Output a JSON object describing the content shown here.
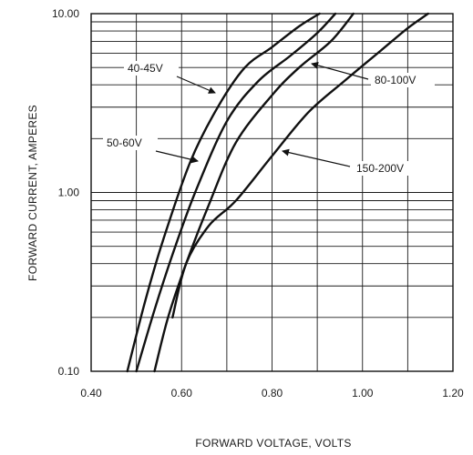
{
  "chart_data": {
    "type": "line",
    "xlabel": "FORWARD VOLTAGE, VOLTS",
    "ylabel": "FORWARD CURRENT, AMPERES",
    "x_scale": "linear",
    "y_scale": "log",
    "xlim": [
      0.4,
      1.2
    ],
    "ylim": [
      0.1,
      10.0
    ],
    "x_ticks": [
      "0.40",
      "0.60",
      "0.80",
      "1.00",
      "1.20"
    ],
    "y_ticks": [
      "0.10",
      "1.00",
      "10.00"
    ],
    "grid": true,
    "series": [
      {
        "name": "40-45V",
        "x": [
          0.48,
          0.52,
          0.56,
          0.62,
          0.68,
          0.74,
          0.8,
          0.86,
          0.905
        ],
        "y": [
          0.1,
          0.25,
          0.55,
          1.5,
          3.0,
          5.0,
          6.5,
          8.5,
          10.0
        ]
      },
      {
        "name": "50-60V",
        "x": [
          0.5,
          0.54,
          0.58,
          0.63,
          0.7,
          0.77,
          0.84,
          0.9,
          0.94
        ],
        "y": [
          0.1,
          0.22,
          0.45,
          1.0,
          2.5,
          4.2,
          5.8,
          7.8,
          10.0
        ]
      },
      {
        "name": "80-100V",
        "x": [
          0.54,
          0.57,
          0.61,
          0.66,
          0.72,
          0.8,
          0.86,
          0.93,
          0.98
        ],
        "y": [
          0.1,
          0.2,
          0.4,
          0.85,
          1.9,
          3.5,
          5.0,
          7.0,
          10.0
        ]
      },
      {
        "name": "150-200V",
        "x": [
          0.58,
          0.61,
          0.66,
          0.72,
          0.8,
          0.88,
          0.96,
          1.04,
          1.1,
          1.145
        ],
        "y": [
          0.2,
          0.4,
          0.65,
          0.9,
          1.6,
          2.8,
          4.2,
          6.2,
          8.3,
          10.0
        ]
      }
    ],
    "annotations": [
      "40-45V",
      "50-60V",
      "80-100V",
      "150-200V"
    ]
  }
}
